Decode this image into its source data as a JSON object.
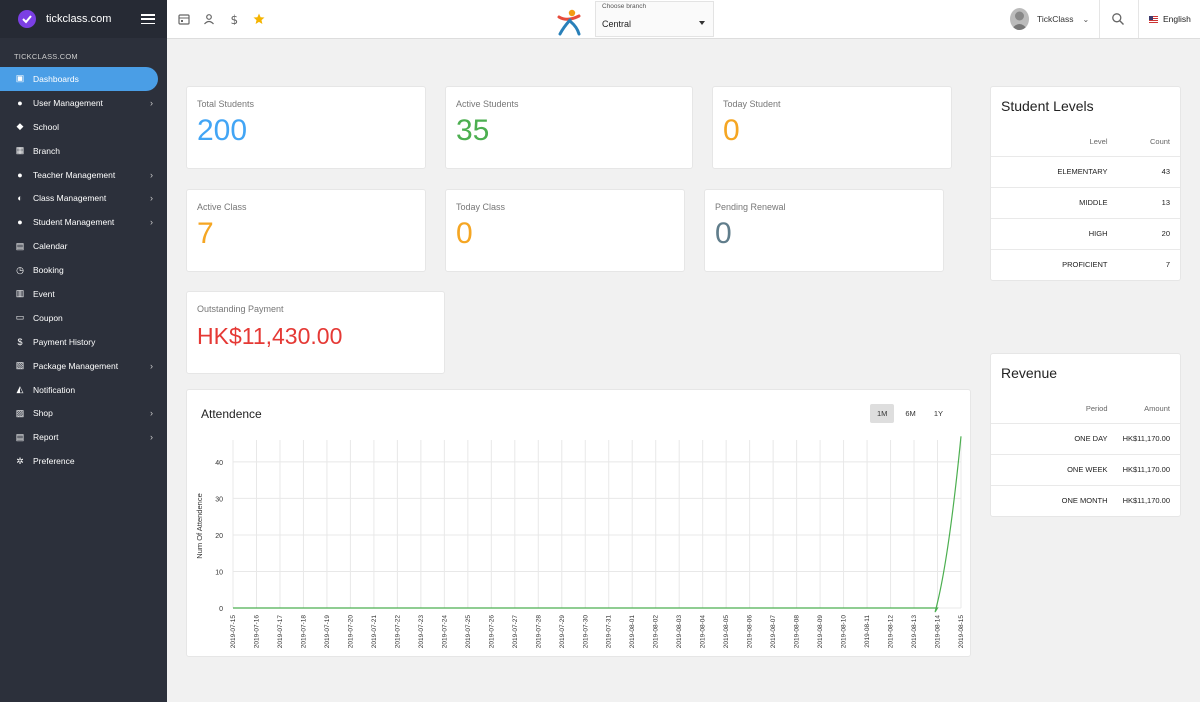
{
  "brand": "tickclass.com",
  "sidebar": {
    "section": "TICKCLASS.COM",
    "items": [
      {
        "label": "Dashboards",
        "icon": "home-icon",
        "arrow": false,
        "active": true
      },
      {
        "label": "User Management",
        "icon": "user-icon",
        "arrow": true
      },
      {
        "label": "School",
        "icon": "graduation-cap-icon",
        "arrow": false
      },
      {
        "label": "Branch",
        "icon": "building-icon",
        "arrow": false
      },
      {
        "label": "Teacher Management",
        "icon": "teacher-icon",
        "arrow": true
      },
      {
        "label": "Class Management",
        "icon": "class-icon",
        "arrow": true
      },
      {
        "label": "Student Management",
        "icon": "student-icon",
        "arrow": true
      },
      {
        "label": "Calendar",
        "icon": "calendar-icon",
        "arrow": false
      },
      {
        "label": "Booking",
        "icon": "clock-icon",
        "arrow": false
      },
      {
        "label": "Event",
        "icon": "event-icon",
        "arrow": false
      },
      {
        "label": "Coupon",
        "icon": "coupon-icon",
        "arrow": false
      },
      {
        "label": "Payment History",
        "icon": "dollar-icon",
        "arrow": false
      },
      {
        "label": "Package Management",
        "icon": "package-icon",
        "arrow": true
      },
      {
        "label": "Notification",
        "icon": "bell-icon",
        "arrow": false
      },
      {
        "label": "Shop",
        "icon": "cart-icon",
        "arrow": true
      },
      {
        "label": "Report",
        "icon": "report-icon",
        "arrow": true
      },
      {
        "label": "Preference",
        "icon": "gear-icon",
        "arrow": false
      }
    ]
  },
  "topbar": {
    "branch_label": "Choose branch",
    "branch_value": "Central",
    "user_name": "TickClass",
    "language": "English"
  },
  "stats": [
    {
      "label": "Total Students",
      "value": "200",
      "color": "#42a5f5"
    },
    {
      "label": "Active Students",
      "value": "35",
      "color": "#4caf50"
    },
    {
      "label": "Today Student",
      "value": "0",
      "color": "#f5a623"
    },
    {
      "label": "Active Class",
      "value": "7",
      "color": "#f5a623"
    },
    {
      "label": "Today Class",
      "value": "0",
      "color": "#f5a623"
    },
    {
      "label": "Pending Renewal",
      "value": "0",
      "color": "#607d8b"
    },
    {
      "label": "Outstanding Payment",
      "value": "HK$11,430.00",
      "color": "#e53935"
    }
  ],
  "student_levels": {
    "title": "Student Levels",
    "headers": [
      "Level",
      "Count"
    ],
    "rows": [
      [
        "ELEMENTARY",
        "43"
      ],
      [
        "MIDDLE",
        "13"
      ],
      [
        "HIGH",
        "20"
      ],
      [
        "PROFICIENT",
        "7"
      ]
    ]
  },
  "revenue": {
    "title": "Revenue",
    "headers": [
      "Period",
      "Amount"
    ],
    "rows": [
      [
        "ONE DAY",
        "HK$11,170.00"
      ],
      [
        "ONE WEEK",
        "HK$11,170.00"
      ],
      [
        "ONE MONTH",
        "HK$11,170.00"
      ]
    ]
  },
  "attendance": {
    "title": "Attendence",
    "ranges": [
      "1M",
      "6M",
      "1Y"
    ],
    "active_range": "1M"
  },
  "chart_data": {
    "type": "line",
    "title": "Attendence",
    "xlabel": "",
    "ylabel": "Num Of Attendence",
    "ylim": [
      0,
      46
    ],
    "yticks": [
      0,
      10,
      20,
      30,
      40
    ],
    "x": [
      "2019-07-15",
      "2019-07-16",
      "2019-07-17",
      "2019-07-18",
      "2019-07-19",
      "2019-07-20",
      "2019-07-21",
      "2019-07-22",
      "2019-07-23",
      "2019-07-24",
      "2019-07-25",
      "2019-07-26",
      "2019-07-27",
      "2019-07-28",
      "2019-07-29",
      "2019-07-30",
      "2019-07-31",
      "2019-08-01",
      "2019-08-02",
      "2019-08-03",
      "2019-08-04",
      "2019-08-05",
      "2019-08-06",
      "2019-08-07",
      "2019-08-08",
      "2019-08-09",
      "2019-08-10",
      "2019-08-11",
      "2019-08-12",
      "2019-08-13",
      "2019-08-14",
      "2019-08-15"
    ],
    "series": [
      {
        "color": "#4caf50",
        "values": [
          0,
          0,
          0,
          0,
          0,
          0,
          0,
          0,
          0,
          0,
          0,
          0,
          0,
          0,
          0,
          0,
          0,
          0,
          0,
          0,
          0,
          0,
          0,
          0,
          0,
          0,
          0,
          0,
          0,
          0,
          0,
          47
        ]
      }
    ],
    "grid": true
  }
}
